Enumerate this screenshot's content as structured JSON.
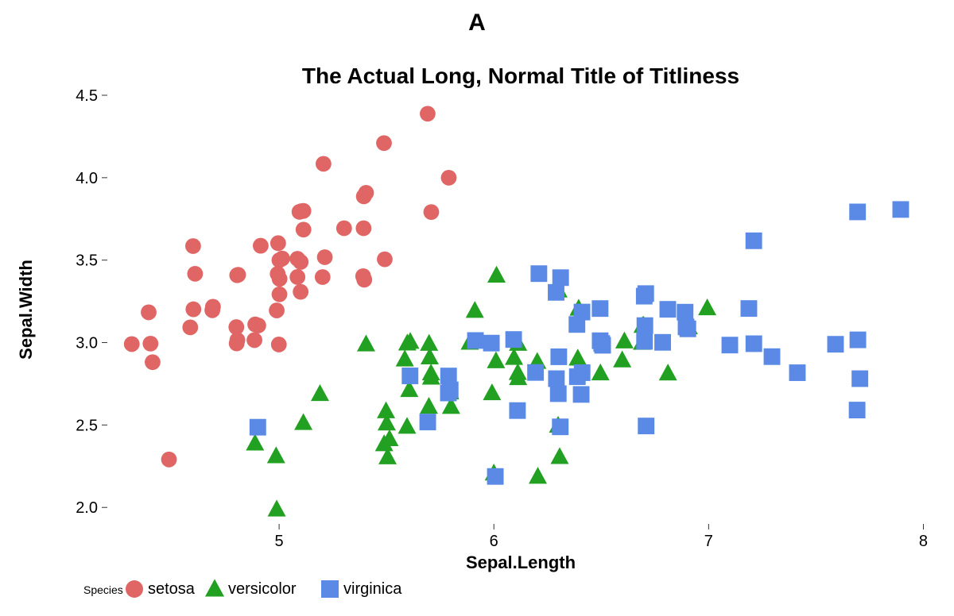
{
  "chart": {
    "type": "scatter",
    "tag_label": "A",
    "title": "The Actual Long, Normal Title of Titliness",
    "xlabel": "Sepal.Length",
    "ylabel": "Sepal.Width",
    "background_color": "#ffffff",
    "text_color": "#000000",
    "xlim": [
      4.2,
      8.05
    ],
    "ylim": [
      1.9,
      4.5
    ],
    "xticks": [
      5,
      6,
      7,
      8
    ],
    "yticks": [
      2.0,
      2.5,
      3.0,
      3.5,
      4.0,
      4.5
    ],
    "marker_size": 11,
    "tag_fontsize": 30,
    "title_fontsize": 28,
    "axis_label_fontsize": 22,
    "tick_fontsize": 20,
    "legend_title_fontsize": 14,
    "legend_item_fontsize": 20,
    "tick_color": "#000000",
    "tick_line_color": "#333333",
    "legend": {
      "title": "Species",
      "items": [
        {
          "label": "setosa",
          "color": "#e06666",
          "shape": "circle"
        },
        {
          "label": "versicolor",
          "color": "#22a022",
          "shape": "triangle"
        },
        {
          "label": "virginica",
          "color": "#5a8ae6",
          "shape": "square"
        }
      ]
    },
    "series": [
      {
        "name": "setosa",
        "color": "#e06666",
        "shape": "circle",
        "points": [
          [
            5.1,
            3.5
          ],
          [
            4.9,
            3.0
          ],
          [
            4.7,
            3.2
          ],
          [
            4.6,
            3.1
          ],
          [
            5.0,
            3.6
          ],
          [
            5.4,
            3.9
          ],
          [
            4.6,
            3.4
          ],
          [
            5.0,
            3.4
          ],
          [
            4.4,
            2.9
          ],
          [
            4.9,
            3.1
          ],
          [
            5.4,
            3.7
          ],
          [
            4.8,
            3.4
          ],
          [
            4.8,
            3.0
          ],
          [
            4.3,
            3.0
          ],
          [
            5.8,
            4.0
          ],
          [
            5.7,
            4.4
          ],
          [
            5.4,
            3.9
          ],
          [
            5.1,
            3.5
          ],
          [
            5.7,
            3.8
          ],
          [
            5.1,
            3.8
          ],
          [
            5.4,
            3.4
          ],
          [
            5.1,
            3.7
          ],
          [
            4.6,
            3.6
          ],
          [
            5.1,
            3.3
          ],
          [
            4.8,
            3.4
          ],
          [
            5.0,
            3.0
          ],
          [
            5.0,
            3.4
          ],
          [
            5.2,
            3.5
          ],
          [
            5.2,
            3.4
          ],
          [
            4.7,
            3.2
          ],
          [
            4.8,
            3.1
          ],
          [
            5.4,
            3.4
          ],
          [
            5.2,
            4.1
          ],
          [
            5.5,
            4.2
          ],
          [
            4.9,
            3.1
          ],
          [
            5.0,
            3.2
          ],
          [
            5.5,
            3.5
          ],
          [
            4.9,
            3.6
          ],
          [
            4.4,
            3.0
          ],
          [
            5.1,
            3.4
          ],
          [
            5.0,
            3.5
          ],
          [
            4.5,
            2.3
          ],
          [
            4.4,
            3.2
          ],
          [
            5.0,
            3.5
          ],
          [
            5.1,
            3.8
          ],
          [
            4.8,
            3.0
          ],
          [
            5.1,
            3.8
          ],
          [
            4.6,
            3.2
          ],
          [
            5.3,
            3.7
          ],
          [
            5.0,
            3.3
          ]
        ]
      },
      {
        "name": "versicolor",
        "color": "#22a022",
        "shape": "triangle",
        "points": [
          [
            7.0,
            3.2
          ],
          [
            6.4,
            3.2
          ],
          [
            6.9,
            3.1
          ],
          [
            5.5,
            2.3
          ],
          [
            6.5,
            2.8
          ],
          [
            5.7,
            2.8
          ],
          [
            6.3,
            3.3
          ],
          [
            4.9,
            2.4
          ],
          [
            6.6,
            2.9
          ],
          [
            5.2,
            2.7
          ],
          [
            5.0,
            2.0
          ],
          [
            5.9,
            3.0
          ],
          [
            6.0,
            2.2
          ],
          [
            6.1,
            2.9
          ],
          [
            5.6,
            2.9
          ],
          [
            6.7,
            3.1
          ],
          [
            5.6,
            3.0
          ],
          [
            5.8,
            2.7
          ],
          [
            6.2,
            2.2
          ],
          [
            5.6,
            2.5
          ],
          [
            5.9,
            3.2
          ],
          [
            6.1,
            2.8
          ],
          [
            6.3,
            2.5
          ],
          [
            6.1,
            2.8
          ],
          [
            6.4,
            2.9
          ],
          [
            6.6,
            3.0
          ],
          [
            6.8,
            2.8
          ],
          [
            6.7,
            3.0
          ],
          [
            6.0,
            2.9
          ],
          [
            5.7,
            2.6
          ],
          [
            5.5,
            2.4
          ],
          [
            5.5,
            2.4
          ],
          [
            5.8,
            2.7
          ],
          [
            6.0,
            2.7
          ],
          [
            5.4,
            3.0
          ],
          [
            6.0,
            3.4
          ],
          [
            6.7,
            3.1
          ],
          [
            6.3,
            2.3
          ],
          [
            5.6,
            3.0
          ],
          [
            5.5,
            2.5
          ],
          [
            5.5,
            2.6
          ],
          [
            6.1,
            3.0
          ],
          [
            5.8,
            2.6
          ],
          [
            5.0,
            2.3
          ],
          [
            5.6,
            2.7
          ],
          [
            5.7,
            3.0
          ],
          [
            5.7,
            2.9
          ],
          [
            6.2,
            2.9
          ],
          [
            5.1,
            2.5
          ],
          [
            5.7,
            2.8
          ]
        ]
      },
      {
        "name": "virginica",
        "color": "#5a8ae6",
        "shape": "square",
        "points": [
          [
            6.3,
            3.3
          ],
          [
            5.8,
            2.7
          ],
          [
            7.1,
            3.0
          ],
          [
            6.3,
            2.9
          ],
          [
            6.5,
            3.0
          ],
          [
            7.6,
            3.0
          ],
          [
            4.9,
            2.5
          ],
          [
            7.3,
            2.9
          ],
          [
            6.7,
            2.5
          ],
          [
            7.2,
            3.6
          ],
          [
            6.5,
            3.2
          ],
          [
            6.4,
            2.7
          ],
          [
            6.8,
            3.0
          ],
          [
            5.7,
            2.5
          ],
          [
            5.8,
            2.8
          ],
          [
            6.4,
            3.2
          ],
          [
            6.5,
            3.0
          ],
          [
            7.7,
            3.8
          ],
          [
            7.7,
            2.6
          ],
          [
            6.0,
            2.2
          ],
          [
            6.9,
            3.2
          ],
          [
            5.6,
            2.8
          ],
          [
            7.7,
            2.8
          ],
          [
            6.3,
            2.7
          ],
          [
            6.7,
            3.3
          ],
          [
            7.2,
            3.2
          ],
          [
            6.2,
            2.8
          ],
          [
            6.1,
            3.0
          ],
          [
            6.4,
            2.8
          ],
          [
            7.2,
            3.0
          ],
          [
            7.4,
            2.8
          ],
          [
            7.9,
            3.8
          ],
          [
            6.4,
            2.8
          ],
          [
            6.3,
            2.8
          ],
          [
            6.1,
            2.6
          ],
          [
            7.7,
            3.0
          ],
          [
            6.3,
            3.4
          ],
          [
            6.4,
            3.1
          ],
          [
            6.0,
            3.0
          ],
          [
            6.9,
            3.1
          ],
          [
            6.7,
            3.1
          ],
          [
            6.9,
            3.1
          ],
          [
            5.8,
            2.7
          ],
          [
            6.8,
            3.2
          ],
          [
            6.7,
            3.3
          ],
          [
            6.7,
            3.0
          ],
          [
            6.3,
            2.5
          ],
          [
            6.5,
            3.0
          ],
          [
            6.2,
            3.4
          ],
          [
            5.9,
            3.0
          ]
        ]
      }
    ]
  }
}
